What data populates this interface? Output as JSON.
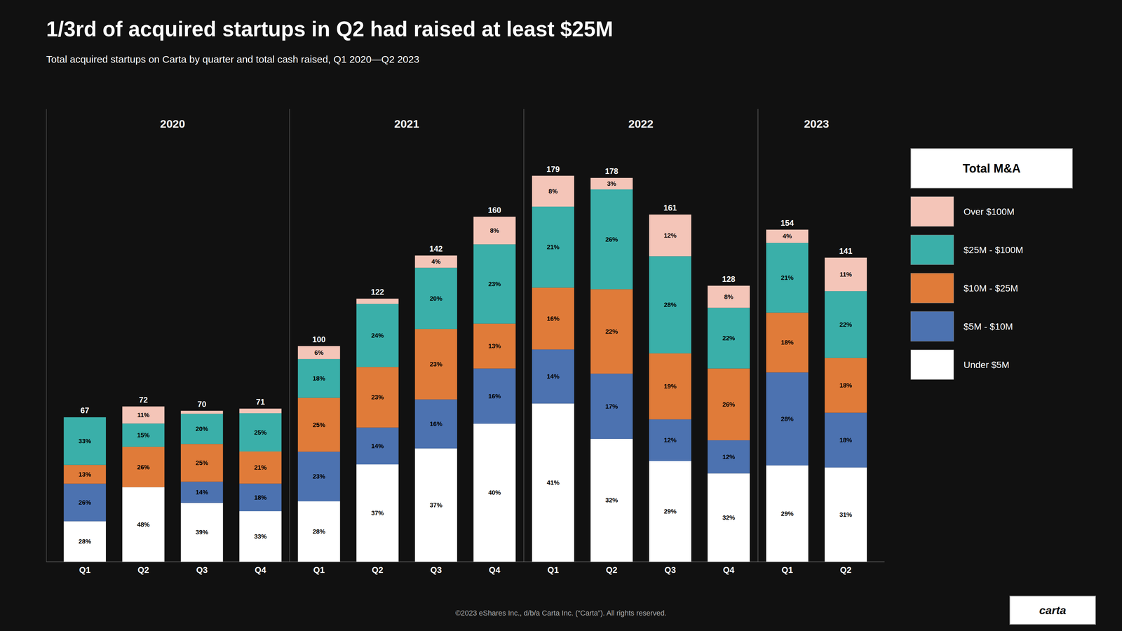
{
  "chart_data": {
    "type": "bar",
    "stacked": true,
    "title": "1/3rd of acquired startups in Q2 had raised at least $25M",
    "subtitle": "Total acquired startups on Carta by quarter and total cash raised, Q1 2020—Q2 2023",
    "footer": "©2023 eShares Inc., d/b/a Carta Inc. (“Carta”). All rights reserved.",
    "legend_title": "Total M&A",
    "logo_text": "carta",
    "legend": "right",
    "tick_labels": "x",
    "categories": [
      "Q1",
      "Q2",
      "Q3",
      "Q4",
      "Q1",
      "Q2",
      "Q3",
      "Q4",
      "Q1",
      "Q2",
      "Q3",
      "Q4",
      "Q1",
      "Q2"
    ],
    "years": [
      "2020",
      "2021",
      "2022",
      "2023"
    ],
    "ylim": [
      0,
      210
    ],
    "totals": [
      67,
      72,
      70,
      71,
      100,
      122,
      142,
      160,
      179,
      178,
      161,
      128,
      154,
      141
    ],
    "series": [
      {
        "name": "Under $5M",
        "color": "#ffffff",
        "values": [
          18.76,
          34.56,
          27.3,
          23.43,
          28,
          45.14,
          52.54,
          64,
          73.39,
          56.96,
          46.69,
          40.96,
          44.66,
          43.71
        ],
        "percentages": [
          28,
          48,
          39,
          33,
          28,
          37,
          37,
          40,
          41,
          32,
          29,
          32,
          29,
          31
        ],
        "percentage_labels": [
          "28%",
          "48%",
          "39%",
          "33%",
          "28%",
          "37%",
          "37%",
          "40%",
          "41%",
          "32%",
          "29%",
          "32%",
          "29%",
          "31%"
        ]
      },
      {
        "name": "$5M - $10M",
        "color": "#4c72b0",
        "values": [
          17.42,
          0,
          9.8,
          12.78,
          23,
          17.08,
          22.72,
          25.6,
          25.06,
          30.26,
          19.32,
          15.36,
          43.12,
          25.38
        ],
        "percentages": [
          26,
          0,
          14,
          18,
          23,
          14,
          16,
          16,
          14,
          17,
          12,
          12,
          28,
          18
        ],
        "percentage_labels": [
          "26%",
          null,
          "14%",
          "18%",
          "23%",
          "14%",
          "16%",
          "16%",
          "14%",
          "17%",
          "12%",
          "12%",
          "28%",
          "18%"
        ]
      },
      {
        "name": "$10M - $25M",
        "color": "#e07b39",
        "values": [
          8.71,
          18.72,
          17.5,
          14.91,
          25,
          28.06,
          32.66,
          20.8,
          28.64,
          39.16,
          30.59,
          33.28,
          27.72,
          25.38
        ],
        "percentages": [
          13,
          26,
          25,
          21,
          25,
          23,
          23,
          13,
          16,
          22,
          19,
          26,
          18,
          18
        ],
        "percentage_labels": [
          "13%",
          "26%",
          "25%",
          "21%",
          "25%",
          "23%",
          "23%",
          "13%",
          "16%",
          "22%",
          "19%",
          "26%",
          "18%",
          "18%"
        ]
      },
      {
        "name": "$25M - $100M",
        "color": "#3aafa9",
        "values": [
          22.11,
          10.8,
          14,
          17.75,
          18,
          29.28,
          28.4,
          36.8,
          37.59,
          46.28,
          45.08,
          28.16,
          32.34,
          31.02
        ],
        "percentages": [
          33,
          15,
          20,
          25,
          18,
          24,
          20,
          23,
          21,
          26,
          28,
          22,
          21,
          22
        ],
        "percentage_labels": [
          "33%",
          "15%",
          "20%",
          "25%",
          "18%",
          "24%",
          "20%",
          "23%",
          "21%",
          "26%",
          "28%",
          "22%",
          "21%",
          "22%"
        ]
      },
      {
        "name": "Over $100M",
        "color": "#f4c5b8",
        "values": [
          0,
          7.92,
          1.4,
          2.13,
          6,
          2.44,
          5.68,
          12.8,
          14.32,
          5.34,
          19.32,
          10.24,
          6.16,
          15.51
        ],
        "percentages": [
          0,
          11,
          2,
          3,
          6,
          2,
          4,
          8,
          8,
          3,
          12,
          8,
          4,
          11
        ],
        "percentage_labels": [
          null,
          "11%",
          null,
          null,
          "6%",
          null,
          "4%",
          "8%",
          "8%",
          "3%",
          "12%",
          "8%",
          "4%",
          "11%"
        ]
      }
    ]
  }
}
